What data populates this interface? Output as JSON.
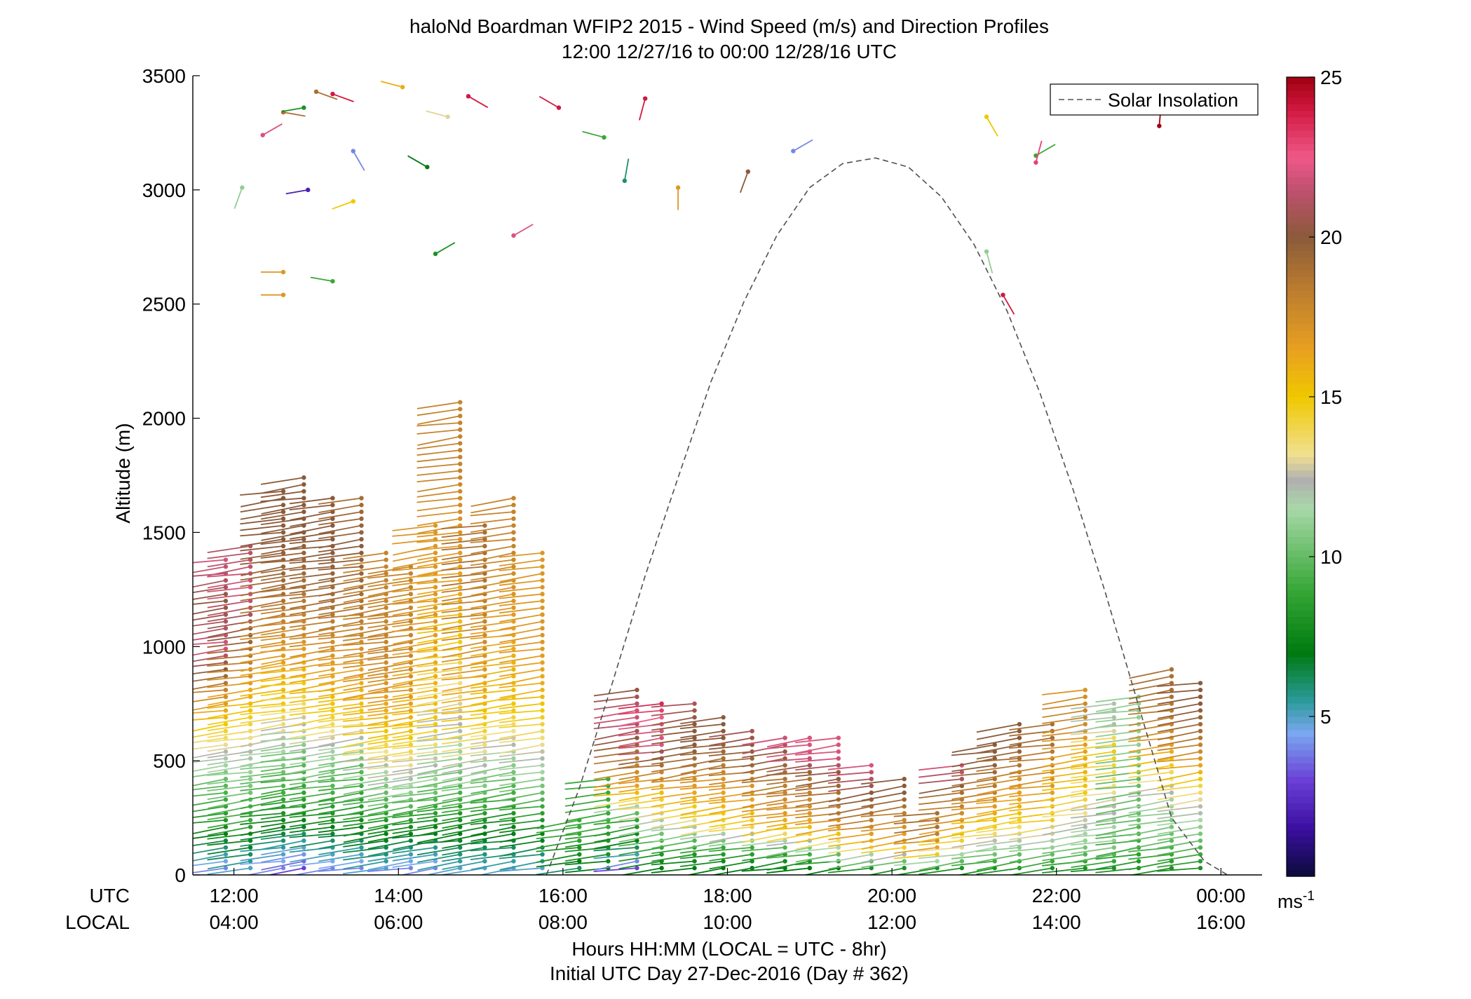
{
  "chart_data": {
    "type": "scatter",
    "title": "haloNd Boardman WFIP2 2015 - Wind Speed (m/s) and Direction Profiles",
    "subtitle": "12:00 12/27/16 to 00:00 12/28/16  UTC",
    "ylabel": "Altitude (m)",
    "xlabel": "Hours HH:MM  (LOCAL = UTC - 8hr)",
    "xlabel2": "Initial UTC Day 27-Dec-2016 (Day # 362)",
    "xrow_utc_label": "UTC",
    "xrow_local_label": "LOCAL",
    "xlim": [
      11.5,
      24.5
    ],
    "ylim": [
      0,
      3500
    ],
    "x_ticks": [
      12,
      14,
      16,
      18,
      20,
      22,
      24
    ],
    "x_tick_labels_utc": [
      "12:00",
      "14:00",
      "16:00",
      "18:00",
      "20:00",
      "22:00",
      "00:00"
    ],
    "x_tick_labels_local": [
      "04:00",
      "06:00",
      "08:00",
      "10:00",
      "12:00",
      "14:00",
      "16:00"
    ],
    "y_ticks": [
      0,
      500,
      1000,
      1500,
      2000,
      2500,
      3000,
      3500
    ],
    "y_tick_labels": [
      "0",
      "500",
      "1000",
      "1500",
      "2000",
      "2500",
      "3000",
      "3500"
    ],
    "legend": {
      "entries": [
        "Solar Insolation"
      ],
      "placement": "top-right"
    },
    "colorbar": {
      "unit_label": "ms",
      "unit_exponent": "-1",
      "range": [
        0,
        25
      ],
      "tick_values": [
        5,
        10,
        15,
        20,
        25
      ],
      "tick_labels": [
        "5",
        "10",
        "15",
        "20",
        "25"
      ],
      "stops": [
        {
          "v": 0,
          "c": "#0b0b3a"
        },
        {
          "v": 1.5,
          "c": "#3a0fa0"
        },
        {
          "v": 3,
          "c": "#6a3fd6"
        },
        {
          "v": 4.5,
          "c": "#7aa8f0"
        },
        {
          "v": 5.5,
          "c": "#2a9a9a"
        },
        {
          "v": 7,
          "c": "#007a10"
        },
        {
          "v": 9,
          "c": "#38a838"
        },
        {
          "v": 11.5,
          "c": "#a8d8a8"
        },
        {
          "v": 12.4,
          "c": "#b0b0b0"
        },
        {
          "v": 13.2,
          "c": "#f0e090"
        },
        {
          "v": 15,
          "c": "#f0c800"
        },
        {
          "v": 16.5,
          "c": "#e8a020"
        },
        {
          "v": 18.5,
          "c": "#b87a30"
        },
        {
          "v": 20,
          "c": "#8a5a3a"
        },
        {
          "v": 21.5,
          "c": "#c05070"
        },
        {
          "v": 22.5,
          "c": "#f05888"
        },
        {
          "v": 24,
          "c": "#d01840"
        },
        {
          "v": 25,
          "c": "#a00010"
        }
      ]
    },
    "solar_insolation": {
      "name": "Solar Insolation",
      "x": [
        15.8,
        16.2,
        16.6,
        17.0,
        17.4,
        17.8,
        18.2,
        18.6,
        19.0,
        19.4,
        19.8,
        20.2,
        20.6,
        21.0,
        21.4,
        21.8,
        22.2,
        22.6,
        23.0,
        23.4,
        23.8,
        24.08
      ],
      "y": [
        0,
        380,
        840,
        1310,
        1740,
        2160,
        2510,
        2800,
        3010,
        3115,
        3140,
        3100,
        2970,
        2760,
        2470,
        2110,
        1690,
        1230,
        740,
        250,
        60,
        0
      ]
    },
    "wind_profiles": [
      {
        "t": 11.9,
        "bottom": 30,
        "top": 1390,
        "speeds": [
          4,
          8,
          10,
          14,
          18,
          22,
          20,
          22
        ]
      },
      {
        "t": 12.2,
        "bottom": 30,
        "top": 1460,
        "speeds": [
          5,
          9,
          11,
          14,
          17,
          20,
          22,
          21
        ]
      },
      {
        "t": 12.6,
        "bottom": 30,
        "top": 1700,
        "speeds": [
          4,
          8,
          11,
          15,
          17,
          19,
          20,
          20
        ]
      },
      {
        "t": 12.85,
        "bottom": 30,
        "top": 1750,
        "speeds": [
          3,
          8,
          10,
          14,
          17,
          19,
          20,
          20
        ]
      },
      {
        "t": 13.2,
        "bottom": 30,
        "top": 1650,
        "speeds": [
          4,
          8,
          11,
          15,
          17,
          19,
          20,
          20
        ]
      },
      {
        "t": 13.55,
        "bottom": 30,
        "top": 1660,
        "speeds": [
          4,
          8,
          10,
          15,
          17,
          19,
          20,
          19
        ]
      },
      {
        "t": 13.85,
        "bottom": 30,
        "top": 1420,
        "speeds": [
          5,
          8,
          11,
          15,
          17,
          18,
          18,
          18
        ]
      },
      {
        "t": 14.15,
        "bottom": 30,
        "top": 1360,
        "speeds": [
          4,
          8,
          12,
          15,
          17,
          18,
          18,
          18
        ]
      },
      {
        "t": 14.45,
        "bottom": 30,
        "top": 1530,
        "speeds": [
          4,
          8,
          12,
          15,
          16,
          17,
          17,
          17
        ]
      },
      {
        "t": 14.75,
        "bottom": 30,
        "top": 2080,
        "speeds": [
          5,
          9,
          12,
          14,
          16,
          17,
          18,
          18
        ]
      },
      {
        "t": 15.05,
        "bottom": 30,
        "top": 1540,
        "speeds": [
          5,
          8,
          12,
          15,
          17,
          18,
          19,
          19
        ]
      },
      {
        "t": 15.4,
        "bottom": 30,
        "top": 1670,
        "speeds": [
          5,
          8,
          11,
          15,
          16,
          17,
          18,
          18
        ]
      },
      {
        "t": 15.75,
        "bottom": 30,
        "top": 1430,
        "speeds": [
          5,
          8,
          11,
          14,
          16,
          17,
          17,
          17
        ]
      },
      {
        "t": 16.2,
        "bottom": 30,
        "top": 260,
        "speeds": [
          6,
          7,
          8,
          8,
          9,
          9,
          9,
          9
        ]
      },
      {
        "t": 16.55,
        "bottom": 30,
        "top": 420,
        "speeds": [
          7,
          8,
          8,
          9,
          9,
          9,
          9,
          9
        ]
      },
      {
        "t": 16.9,
        "bottom": 30,
        "top": 820,
        "speeds": [
          3,
          7,
          9,
          16,
          18,
          20,
          22,
          20
        ]
      },
      {
        "t": 17.2,
        "bottom": 30,
        "top": 770,
        "speeds": [
          7,
          9,
          12,
          15,
          18,
          22,
          22,
          24
        ]
      },
      {
        "t": 17.6,
        "bottom": 30,
        "top": 760,
        "speeds": [
          7,
          9,
          13,
          16,
          18,
          20,
          20,
          21
        ]
      },
      {
        "t": 17.95,
        "bottom": 30,
        "top": 700,
        "speeds": [
          7,
          9,
          14,
          16,
          17,
          19,
          20,
          20
        ]
      },
      {
        "t": 18.3,
        "bottom": 30,
        "top": 650,
        "speeds": [
          7,
          9,
          14,
          16,
          17,
          19,
          20,
          21
        ]
      },
      {
        "t": 18.7,
        "bottom": 30,
        "top": 610,
        "speeds": [
          7,
          9,
          15,
          17,
          18,
          19,
          20,
          22
        ]
      },
      {
        "t": 19.0,
        "bottom": 30,
        "top": 600,
        "speeds": [
          7,
          10,
          15,
          17,
          18,
          19,
          22,
          22
        ]
      },
      {
        "t": 19.35,
        "bottom": 30,
        "top": 600,
        "speeds": [
          7,
          11,
          16,
          18,
          19,
          20,
          22,
          22
        ]
      },
      {
        "t": 19.75,
        "bottom": 30,
        "top": 480,
        "speeds": [
          8,
          12,
          16,
          18,
          19,
          20,
          21,
          22
        ]
      },
      {
        "t": 20.15,
        "bottom": 30,
        "top": 420,
        "speeds": [
          8,
          12,
          16,
          17,
          18,
          19,
          20,
          20
        ]
      },
      {
        "t": 20.55,
        "bottom": 30,
        "top": 280,
        "speeds": [
          8,
          12,
          16,
          17,
          18,
          19,
          19,
          19
        ]
      },
      {
        "t": 20.85,
        "bottom": 30,
        "top": 490,
        "speeds": [
          8,
          12,
          15,
          17,
          18,
          19,
          21,
          22
        ]
      },
      {
        "t": 21.25,
        "bottom": 30,
        "top": 580,
        "speeds": [
          8,
          11,
          14,
          16,
          18,
          19,
          20,
          20
        ]
      },
      {
        "t": 21.55,
        "bottom": 30,
        "top": 680,
        "speeds": [
          8,
          11,
          14,
          16,
          17,
          19,
          20,
          20
        ]
      },
      {
        "t": 21.95,
        "bottom": 30,
        "top": 670,
        "speeds": [
          8,
          11,
          14,
          16,
          17,
          18,
          19,
          19
        ]
      },
      {
        "t": 22.35,
        "bottom": 30,
        "top": 820,
        "speeds": [
          8,
          11,
          13,
          15,
          16,
          17,
          18,
          17
        ]
      },
      {
        "t": 22.7,
        "bottom": 30,
        "top": 770,
        "speeds": [
          8,
          11,
          12,
          13,
          14,
          15,
          12,
          12
        ]
      },
      {
        "t": 23.0,
        "bottom": 30,
        "top": 780,
        "speeds": [
          8,
          9,
          10,
          10,
          10,
          11,
          11,
          11
        ]
      },
      {
        "t": 23.4,
        "bottom": 30,
        "top": 920,
        "speeds": [
          8,
          10,
          11,
          13,
          16,
          18,
          19,
          19
        ]
      },
      {
        "t": 23.75,
        "bottom": 30,
        "top": 860,
        "speeds": [
          8,
          10,
          12,
          14,
          17,
          19,
          20,
          20
        ]
      }
    ],
    "upper_barbs": [
      {
        "t": 12.1,
        "z": 3010,
        "s": 11,
        "d": 200
      },
      {
        "t": 12.35,
        "z": 3240,
        "s": 22,
        "d": 60
      },
      {
        "t": 12.6,
        "z": 3340,
        "s": 19,
        "d": 100
      },
      {
        "t": 12.6,
        "z": 2540,
        "s": 17,
        "d": 270
      },
      {
        "t": 12.6,
        "z": 2640,
        "s": 17,
        "d": 270
      },
      {
        "t": 12.85,
        "z": 3360,
        "s": 8,
        "d": 260
      },
      {
        "t": 12.9,
        "z": 3000,
        "s": 2,
        "d": 260
      },
      {
        "t": 13.0,
        "z": 3430,
        "s": 19,
        "d": 110
      },
      {
        "t": 13.2,
        "z": 3420,
        "s": 24,
        "d": 110
      },
      {
        "t": 13.2,
        "z": 2600,
        "s": 9,
        "d": 280
      },
      {
        "t": 13.45,
        "z": 3170,
        "s": 4,
        "d": 150
      },
      {
        "t": 13.45,
        "z": 2950,
        "s": 15,
        "d": 250
      },
      {
        "t": 14.05,
        "z": 3450,
        "s": 16,
        "d": 285
      },
      {
        "t": 14.35,
        "z": 3100,
        "s": 7,
        "d": 300
      },
      {
        "t": 14.45,
        "z": 2720,
        "s": 8,
        "d": 60
      },
      {
        "t": 14.6,
        "z": 3320,
        "s": 13,
        "d": 285
      },
      {
        "t": 14.85,
        "z": 3410,
        "s": 24,
        "d": 120
      },
      {
        "t": 15.4,
        "z": 2800,
        "s": 22,
        "d": 60
      },
      {
        "t": 15.95,
        "z": 3360,
        "s": 24,
        "d": 300
      },
      {
        "t": 16.5,
        "z": 3230,
        "s": 9,
        "d": 285
      },
      {
        "t": 16.75,
        "z": 3040,
        "s": 6,
        "d": 10
      },
      {
        "t": 17.0,
        "z": 3400,
        "s": 24,
        "d": 195
      },
      {
        "t": 17.4,
        "z": 3010,
        "s": 17,
        "d": 180
      },
      {
        "t": 18.25,
        "z": 3080,
        "s": 20,
        "d": 200
      },
      {
        "t": 18.8,
        "z": 3170,
        "s": 4,
        "d": 60
      },
      {
        "t": 21.15,
        "z": 3320,
        "s": 15,
        "d": 150
      },
      {
        "t": 21.15,
        "z": 2730,
        "s": 11,
        "d": 165
      },
      {
        "t": 21.35,
        "z": 2540,
        "s": 24,
        "d": 150
      },
      {
        "t": 21.75,
        "z": 3150,
        "s": 9,
        "d": 60
      },
      {
        "t": 21.75,
        "z": 3120,
        "s": 23,
        "d": 15
      },
      {
        "t": 23.25,
        "z": 3280,
        "s": 25,
        "d": 5
      }
    ]
  }
}
